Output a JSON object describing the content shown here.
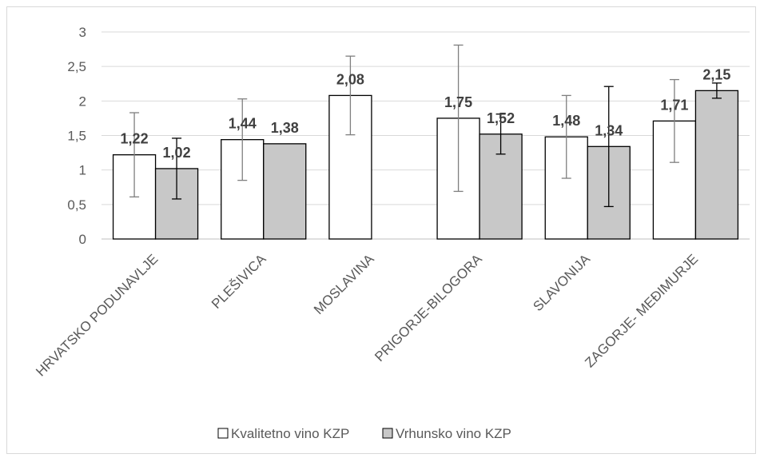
{
  "chart_data": {
    "type": "bar",
    "title": "",
    "xlabel": "",
    "ylabel": "",
    "categories": [
      "HRVATSKO PODUNAVLJE",
      "PLEŠIVICA",
      "MOSLAVINA",
      "PRIGORJE-BILOGORA",
      "SLAVONIJA",
      "ZAGORJE- MEĐIMURJE"
    ],
    "ylim": [
      0,
      3
    ],
    "yticks": [
      0,
      0.5,
      1,
      1.5,
      2,
      2.5,
      3
    ],
    "ytick_labels": [
      "0",
      "0,5",
      "1",
      "1,5",
      "2",
      "2,5",
      "3"
    ],
    "grid": "horizontal",
    "legend_position": "bottom",
    "series": [
      {
        "name": "Kvalitetno vino KZP",
        "color": "#ffffff",
        "values": [
          1.22,
          1.44,
          2.08,
          1.75,
          1.48,
          1.71
        ],
        "labels": [
          "1,22",
          "1,44",
          "2,08",
          "1,75",
          "1,48",
          "1,71"
        ],
        "error": [
          0.61,
          0.59,
          0.57,
          1.06,
          0.6,
          0.6
        ]
      },
      {
        "name": "Vrhunsko vino KZP",
        "color": "#c8c8c8",
        "values": [
          1.02,
          1.38,
          null,
          1.52,
          1.34,
          2.15
        ],
        "labels": [
          "1,02",
          "1,38",
          null,
          "1,52",
          "1,34",
          "2,15"
        ],
        "error": [
          0.44,
          null,
          null,
          0.29,
          0.87,
          0.11
        ]
      }
    ]
  }
}
